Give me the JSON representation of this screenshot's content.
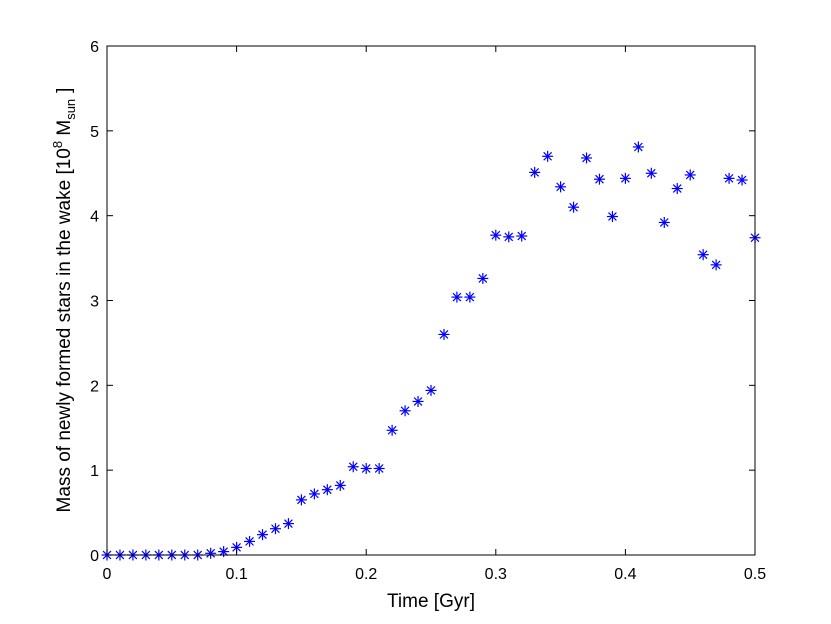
{
  "chart_data": {
    "type": "scatter",
    "xlabel": "Time [Gyr]",
    "ylabel": {
      "prefix": "Mass of newly formed stars in the wake [10",
      "exponent": "8",
      "unit": " M",
      "subscript": "sun",
      "suffix": "]"
    },
    "xlim": [
      0,
      0.5
    ],
    "ylim": [
      0,
      6
    ],
    "xticks": [
      "0",
      "0.1",
      "0.2",
      "0.3",
      "0.4",
      "0.5"
    ],
    "yticks": [
      "0",
      "1",
      "2",
      "3",
      "4",
      "5",
      "6"
    ],
    "grid": false,
    "marker": "asterisk",
    "color": "#0000ff",
    "series": [
      {
        "x": [
          0,
          0.01,
          0.02,
          0.03,
          0.04,
          0.05,
          0.06,
          0.07,
          0.08,
          0.09,
          0.1,
          0.11,
          0.12,
          0.13,
          0.14,
          0.15,
          0.16,
          0.17,
          0.18,
          0.19,
          0.2,
          0.21,
          0.22,
          0.23,
          0.24,
          0.25,
          0.26,
          0.27,
          0.28,
          0.29,
          0.3,
          0.31,
          0.32,
          0.33,
          0.34,
          0.35,
          0.36,
          0.37,
          0.38,
          0.39,
          0.4,
          0.41,
          0.42,
          0.43,
          0.44,
          0.45,
          0.46,
          0.47,
          0.48,
          0.49,
          0.5
        ],
        "y": [
          0,
          0,
          0,
          0,
          0,
          0,
          0,
          0,
          0.02,
          0.04,
          0.09,
          0.16,
          0.24,
          0.31,
          0.37,
          0.65,
          0.72,
          0.77,
          0.82,
          1.04,
          1.02,
          1.02,
          1.47,
          1.7,
          1.81,
          1.94,
          2.6,
          3.04,
          3.04,
          3.26,
          3.77,
          3.75,
          3.76,
          4.51,
          4.7,
          4.34,
          4.1,
          4.68,
          4.43,
          3.99,
          4.44,
          4.81,
          4.5,
          3.92,
          4.32,
          4.48,
          3.54,
          3.42,
          4.44,
          4.42,
          3.74
        ]
      }
    ]
  }
}
